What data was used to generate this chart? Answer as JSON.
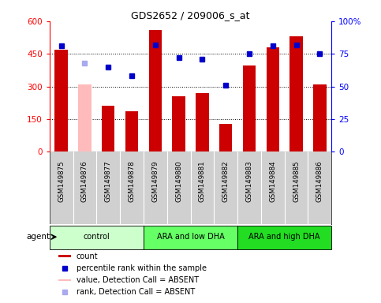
{
  "title": "GDS2652 / 209006_s_at",
  "samples": [
    "GSM149875",
    "GSM149876",
    "GSM149877",
    "GSM149878",
    "GSM149879",
    "GSM149880",
    "GSM149881",
    "GSM149882",
    "GSM149883",
    "GSM149884",
    "GSM149885",
    "GSM149886"
  ],
  "bar_values": [
    470,
    310,
    210,
    185,
    560,
    255,
    270,
    130,
    395,
    480,
    530,
    310
  ],
  "bar_colors": [
    "#cc0000",
    "#ffbbbb",
    "#cc0000",
    "#cc0000",
    "#cc0000",
    "#cc0000",
    "#cc0000",
    "#cc0000",
    "#cc0000",
    "#cc0000",
    "#cc0000",
    "#cc0000"
  ],
  "rank_values": [
    81,
    68,
    65,
    58,
    82,
    72,
    71,
    51,
    75,
    81,
    82,
    75
  ],
  "rank_colors": [
    "#0000cc",
    "#aaaaee",
    "#0000cc",
    "#0000cc",
    "#0000cc",
    "#0000cc",
    "#0000cc",
    "#0000cc",
    "#0000cc",
    "#0000cc",
    "#0000cc",
    "#0000cc"
  ],
  "ylim_left": [
    0,
    600
  ],
  "ylim_right": [
    0,
    100
  ],
  "yticks_left": [
    0,
    150,
    300,
    450,
    600
  ],
  "ytick_labels_left": [
    "0",
    "150",
    "300",
    "450",
    "600"
  ],
  "yticks_right": [
    0,
    25,
    50,
    75,
    100
  ],
  "ytick_labels_right": [
    "0",
    "25",
    "50",
    "75",
    "100%"
  ],
  "groups": [
    {
      "label": "control",
      "start": 0,
      "end": 3,
      "color": "#ccffcc"
    },
    {
      "label": "ARA and low DHA",
      "start": 4,
      "end": 7,
      "color": "#66ff66"
    },
    {
      "label": "ARA and high DHA",
      "start": 8,
      "end": 11,
      "color": "#22dd22"
    }
  ],
  "agent_label": "agent",
  "legend_items": [
    {
      "color": "#cc0000",
      "label": "count"
    },
    {
      "color": "#0000cc",
      "label": "percentile rank within the sample"
    },
    {
      "color": "#ffbbbb",
      "label": "value, Detection Call = ABSENT"
    },
    {
      "color": "#aaaaee",
      "label": "rank, Detection Call = ABSENT"
    }
  ],
  "background_color": "#ffffff",
  "plot_bg_color": "#ffffff",
  "xtick_bg_color": "#d0d0d0",
  "grid_color": "#000000"
}
